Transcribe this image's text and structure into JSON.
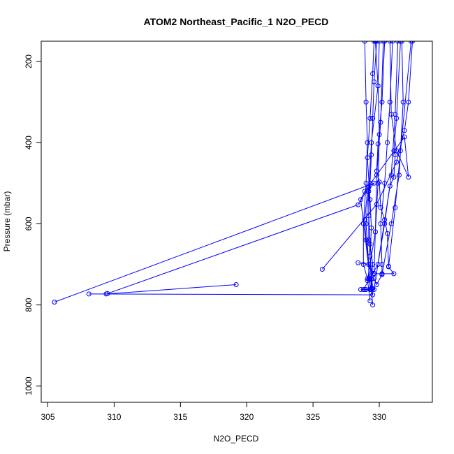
{
  "chart_data": {
    "type": "line",
    "title": "ATOM2 Northeast_Pacific_1 N2O_PECD",
    "xlabel": "N2O_PECD",
    "ylabel": "Pressure (mbar)",
    "xlim": [
      304.5,
      334
    ],
    "ylim": [
      1040,
      150
    ],
    "y_reversed": true,
    "grid": false,
    "legend": "none",
    "x_ticks": [
      305,
      310,
      315,
      320,
      325,
      330
    ],
    "x_tick_labels": [
      "305",
      "310",
      "315",
      "320",
      "325",
      "330"
    ],
    "y_ticks": [
      200,
      400,
      600,
      800,
      1000
    ],
    "y_tick_labels": [
      "200",
      "400",
      "600",
      "800",
      "1000"
    ],
    "color": "#0000ff",
    "series": [
      {
        "values": [
          {
            "x": 319.2,
            "y": 750
          },
          {
            "x": 309.4,
            "y": 773
          },
          {
            "x": 308.1,
            "y": 773
          },
          {
            "x": 329.5,
            "y": 775
          },
          {
            "x": 329.4,
            "y": 737
          },
          {
            "x": 329.5,
            "y": 700
          },
          {
            "x": 329.3,
            "y": 650
          },
          {
            "x": 329.2,
            "y": 580
          },
          {
            "x": 329.3,
            "y": 500
          },
          {
            "x": 329.4,
            "y": 430
          },
          {
            "x": 329.5,
            "y": 340
          },
          {
            "x": 329.6,
            "y": 250
          },
          {
            "x": 329.8,
            "y": 150
          }
        ]
      },
      {
        "values": [
          {
            "x": 305.5,
            "y": 793
          },
          {
            "x": 329.6,
            "y": 500
          },
          {
            "x": 329.1,
            "y": 520
          },
          {
            "x": 328.9,
            "y": 590
          },
          {
            "x": 329.0,
            "y": 640
          },
          {
            "x": 329.2,
            "y": 700
          },
          {
            "x": 329.2,
            "y": 736
          },
          {
            "x": 329.4,
            "y": 762
          },
          {
            "x": 329.5,
            "y": 800
          },
          {
            "x": 329.4,
            "y": 760
          },
          {
            "x": 329.3,
            "y": 680
          },
          {
            "x": 329.4,
            "y": 610
          },
          {
            "x": 329.3,
            "y": 540
          },
          {
            "x": 329.1,
            "y": 437
          },
          {
            "x": 329.3,
            "y": 340
          },
          {
            "x": 329.5,
            "y": 230
          },
          {
            "x": 329.6,
            "y": 150
          }
        ]
      },
      {
        "values": [
          {
            "x": 309.5,
            "y": 772
          },
          {
            "x": 328.4,
            "y": 553
          },
          {
            "x": 329.2,
            "y": 510
          },
          {
            "x": 329.0,
            "y": 600
          },
          {
            "x": 329.2,
            "y": 700
          },
          {
            "x": 329.6,
            "y": 735
          },
          {
            "x": 329.8,
            "y": 750
          },
          {
            "x": 330.2,
            "y": 725
          },
          {
            "x": 330.2,
            "y": 700
          },
          {
            "x": 330.1,
            "y": 600
          },
          {
            "x": 330.4,
            "y": 500
          },
          {
            "x": 330.6,
            "y": 400
          },
          {
            "x": 330.8,
            "y": 300
          },
          {
            "x": 331.0,
            "y": 150
          }
        ]
      },
      {
        "values": [
          {
            "x": 325.7,
            "y": 712
          },
          {
            "x": 329.8,
            "y": 552
          },
          {
            "x": 331.3,
            "y": 448
          },
          {
            "x": 331.9,
            "y": 370
          },
          {
            "x": 332.2,
            "y": 300
          },
          {
            "x": 332.5,
            "y": 150
          }
        ]
      },
      {
        "values": [
          {
            "x": 328.4,
            "y": 696
          },
          {
            "x": 329.2,
            "y": 700
          },
          {
            "x": 329.6,
            "y": 723
          },
          {
            "x": 330.2,
            "y": 723
          },
          {
            "x": 331.1,
            "y": 723
          },
          {
            "x": 330.7,
            "y": 706
          },
          {
            "x": 330.6,
            "y": 624
          },
          {
            "x": 330.4,
            "y": 590
          },
          {
            "x": 330.1,
            "y": 560
          },
          {
            "x": 330.0,
            "y": 497
          },
          {
            "x": 329.8,
            "y": 470
          },
          {
            "x": 329.9,
            "y": 403
          },
          {
            "x": 330.2,
            "y": 300
          },
          {
            "x": 330.4,
            "y": 150
          }
        ]
      },
      {
        "values": [
          {
            "x": 328.6,
            "y": 762
          },
          {
            "x": 329.0,
            "y": 762
          },
          {
            "x": 329.6,
            "y": 762
          },
          {
            "x": 330.8,
            "y": 507
          },
          {
            "x": 331.1,
            "y": 485
          },
          {
            "x": 331.2,
            "y": 430
          },
          {
            "x": 331.1,
            "y": 420
          },
          {
            "x": 331.3,
            "y": 340
          },
          {
            "x": 331.6,
            "y": 150
          }
        ]
      },
      {
        "values": [
          {
            "x": 328.9,
            "y": 762
          },
          {
            "x": 329.3,
            "y": 762
          },
          {
            "x": 329.3,
            "y": 735
          },
          {
            "x": 328.6,
            "y": 540
          },
          {
            "x": 328.9,
            "y": 520
          },
          {
            "x": 331.9,
            "y": 386
          },
          {
            "x": 332.2,
            "y": 485
          },
          {
            "x": 331.3,
            "y": 420
          },
          {
            "x": 330.9,
            "y": 330
          },
          {
            "x": 330.8,
            "y": 150
          }
        ]
      },
      {
        "values": [
          {
            "x": 329.3,
            "y": 790
          },
          {
            "x": 329.1,
            "y": 735
          },
          {
            "x": 328.8,
            "y": 700
          },
          {
            "x": 328.8,
            "y": 600
          },
          {
            "x": 329.0,
            "y": 500
          },
          {
            "x": 329.1,
            "y": 400
          },
          {
            "x": 329.0,
            "y": 300
          },
          {
            "x": 328.9,
            "y": 150
          }
        ]
      },
      {
        "values": [
          {
            "x": 328.8,
            "y": 762
          },
          {
            "x": 329.9,
            "y": 700
          },
          {
            "x": 330.4,
            "y": 600
          },
          {
            "x": 330.9,
            "y": 480
          },
          {
            "x": 331.2,
            "y": 330
          },
          {
            "x": 331.4,
            "y": 150
          }
        ]
      },
      {
        "values": [
          {
            "x": 329.1,
            "y": 740
          },
          {
            "x": 329.7,
            "y": 620
          },
          {
            "x": 329.8,
            "y": 480
          },
          {
            "x": 330.1,
            "y": 350
          },
          {
            "x": 330.3,
            "y": 150
          }
        ]
      },
      {
        "values": [
          {
            "x": 329.5,
            "y": 760
          },
          {
            "x": 329.2,
            "y": 640
          },
          {
            "x": 329.2,
            "y": 520
          },
          {
            "x": 329.4,
            "y": 400
          },
          {
            "x": 329.9,
            "y": 260
          },
          {
            "x": 330.0,
            "y": 150
          }
        ]
      },
      {
        "values": [
          {
            "x": 329.6,
            "y": 722
          },
          {
            "x": 329.7,
            "y": 620
          },
          {
            "x": 329.9,
            "y": 500
          },
          {
            "x": 330.0,
            "y": 380
          },
          {
            "x": 329.9,
            "y": 260
          },
          {
            "x": 329.7,
            "y": 150
          }
        ]
      },
      {
        "values": [
          {
            "x": 330.2,
            "y": 725
          },
          {
            "x": 330.9,
            "y": 600
          },
          {
            "x": 331.5,
            "y": 480
          },
          {
            "x": 331.8,
            "y": 300
          },
          {
            "x": 331.7,
            "y": 150
          }
        ]
      },
      {
        "values": [
          {
            "x": 330.7,
            "y": 705
          },
          {
            "x": 331.2,
            "y": 560
          },
          {
            "x": 331.6,
            "y": 420
          },
          {
            "x": 332.4,
            "y": 150
          }
        ]
      }
    ]
  }
}
